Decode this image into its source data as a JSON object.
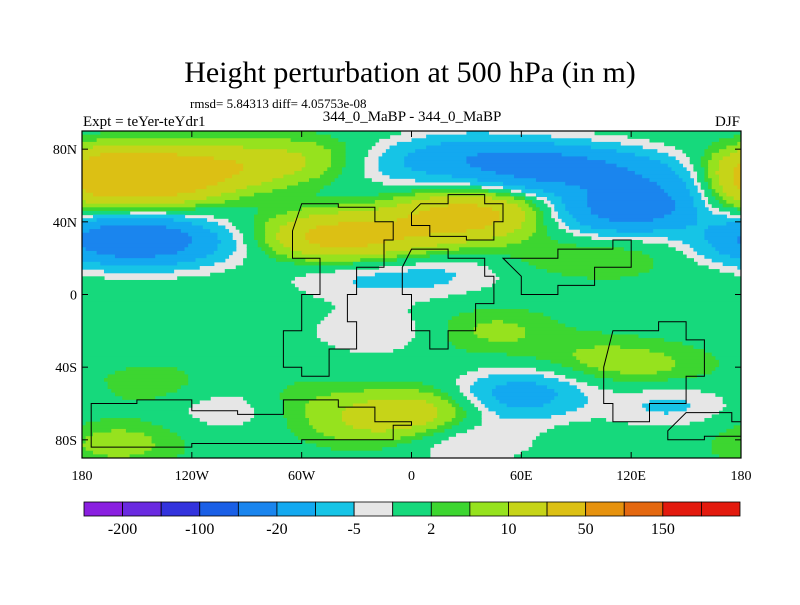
{
  "chart_data": {
    "type": "heatmap",
    "title": "Height perturbation at 500 hPa (in m)",
    "subtitle": "rmsd= 5.84313 diff= 4.05753e-08",
    "center_label": "344_0_MaBP - 344_0_MaBP",
    "left_label": "Expt = teYer-teYdr1",
    "right_label": "DJF",
    "x_ticks": [
      {
        "value": -180,
        "label": "180"
      },
      {
        "value": -120,
        "label": "120W"
      },
      {
        "value": -60,
        "label": "60W"
      },
      {
        "value": 0,
        "label": "0"
      },
      {
        "value": 60,
        "label": "60E"
      },
      {
        "value": 120,
        "label": "120E"
      },
      {
        "value": 180,
        "label": "180"
      }
    ],
    "y_ticks": [
      {
        "value": 80,
        "label": "80N"
      },
      {
        "value": 40,
        "label": "40N"
      },
      {
        "value": 0,
        "label": "0"
      },
      {
        "value": -40,
        "label": "40S"
      },
      {
        "value": -80,
        "label": "80S"
      }
    ],
    "xlim": [
      -180,
      180
    ],
    "ylim": [
      -90,
      90
    ],
    "colorbar": {
      "levels": [
        -200,
        -150,
        -100,
        -50,
        -20,
        -10,
        -5,
        -2,
        2,
        5,
        10,
        20,
        50,
        100,
        150,
        200
      ],
      "colors": [
        "#8a1fe0",
        "#6a2ae0",
        "#3333dd",
        "#1a5fe6",
        "#1a85ee",
        "#13a9f0",
        "#16c4e6",
        "#e6e6e6",
        "#16d97c",
        "#3dd630",
        "#96e21e",
        "#c6d418",
        "#dcc014",
        "#e6920e",
        "#e46810",
        "#e31a0e",
        "#e31a0e"
      ],
      "labels": [
        {
          "index": 0,
          "label": "-200"
        },
        {
          "index": 2,
          "label": "-100"
        },
        {
          "index": 4,
          "label": "-20"
        },
        {
          "index": 6,
          "label": "-5"
        },
        {
          "index": 8,
          "label": "2"
        },
        {
          "index": 10,
          "label": "10"
        },
        {
          "index": 12,
          "label": "50"
        },
        {
          "index": 14,
          "label": "150"
        }
      ]
    },
    "anomalies": [
      {
        "lon": -160,
        "lat": 68,
        "value": 32
      },
      {
        "lon": -135,
        "lat": 62,
        "value": 18
      },
      {
        "lon": -110,
        "lat": 70,
        "value": 12
      },
      {
        "lon": -80,
        "lat": 72,
        "value": 8
      },
      {
        "lon": -50,
        "lat": 75,
        "value": 5
      },
      {
        "lon": -150,
        "lat": 30,
        "value": -25
      },
      {
        "lon": -120,
        "lat": 28,
        "value": -8
      },
      {
        "lon": -175,
        "lat": 30,
        "value": -10
      },
      {
        "lon": -45,
        "lat": 32,
        "value": 22
      },
      {
        "lon": -10,
        "lat": 32,
        "value": 10
      },
      {
        "lon": 20,
        "lat": 42,
        "value": 18
      },
      {
        "lon": 45,
        "lat": 45,
        "value": 12
      },
      {
        "lon": -10,
        "lat": 72,
        "value": -6
      },
      {
        "lon": 30,
        "lat": 75,
        "value": -14
      },
      {
        "lon": 70,
        "lat": 70,
        "value": -22
      },
      {
        "lon": 110,
        "lat": 68,
        "value": -14
      },
      {
        "lon": 125,
        "lat": 48,
        "value": -24
      },
      {
        "lon": 100,
        "lat": 45,
        "value": -8
      },
      {
        "lon": 150,
        "lat": 62,
        "value": -8
      },
      {
        "lon": 180,
        "lat": 55,
        "value": 10
      },
      {
        "lon": 110,
        "lat": 20,
        "value": 4
      },
      {
        "lon": 60,
        "lat": 20,
        "value": 4
      },
      {
        "lon": 0,
        "lat": 10,
        "value": -5
      },
      {
        "lon": 40,
        "lat": 15,
        "value": -4
      },
      {
        "lon": -40,
        "lat": 10,
        "value": -4
      },
      {
        "lon": 45,
        "lat": -20,
        "value": 6
      },
      {
        "lon": -20,
        "lat": -20,
        "value": -5
      },
      {
        "lon": 100,
        "lat": -35,
        "value": 5
      },
      {
        "lon": 60,
        "lat": -55,
        "value": -14
      },
      {
        "lon": 30,
        "lat": -80,
        "value": -6
      },
      {
        "lon": 135,
        "lat": -40,
        "value": 5
      },
      {
        "lon": 140,
        "lat": -60,
        "value": -6
      },
      {
        "lon": 0,
        "lat": -65,
        "value": 14
      },
      {
        "lon": -30,
        "lat": -72,
        "value": 6
      },
      {
        "lon": -100,
        "lat": -62,
        "value": -5
      },
      {
        "lon": -160,
        "lat": -82,
        "value": 7
      },
      {
        "lon": -140,
        "lat": -50,
        "value": 4
      },
      {
        "lon": -60,
        "lat": -58,
        "value": 4
      }
    ]
  }
}
